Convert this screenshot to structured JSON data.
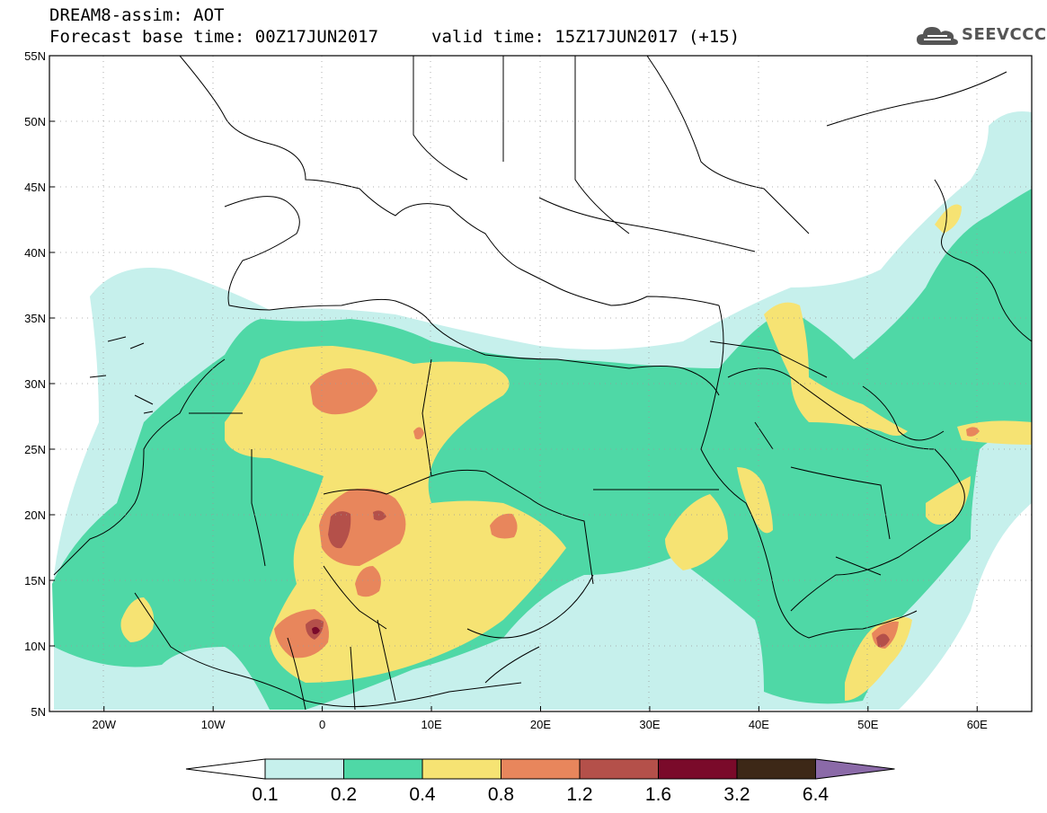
{
  "header": {
    "line1": "DREAM8-assim: AOT",
    "line2": "Forecast base time: 00Z17JUN2017",
    "valid": "valid time: 15Z17JUN2017 (+15)"
  },
  "logo": {
    "text": "SEEVCCC",
    "icon": "cloud-icon"
  },
  "axes": {
    "lon_range": [
      -25,
      65
    ],
    "lat_range": [
      5,
      55
    ],
    "lon_ticks": [
      "20W",
      "10W",
      "0",
      "10E",
      "20E",
      "30E",
      "40E",
      "50E",
      "60E"
    ],
    "lon_values": [
      -20,
      -10,
      0,
      10,
      20,
      30,
      40,
      50,
      60
    ],
    "lat_ticks": [
      "55N",
      "50N",
      "45N",
      "40N",
      "35N",
      "30N",
      "25N",
      "20N",
      "15N",
      "10N",
      "5N"
    ],
    "lat_values": [
      55,
      50,
      45,
      40,
      35,
      30,
      25,
      20,
      15,
      10,
      5
    ]
  },
  "colorbar": {
    "labels": [
      "0.1",
      "0.2",
      "0.4",
      "0.8",
      "1.2",
      "1.6",
      "3.2",
      "6.4"
    ],
    "colors": [
      "#c6f0ec",
      "#4fd8a6",
      "#f6e373",
      "#e8865c",
      "#b4504a",
      "#7a0a2a",
      "#3d2817",
      "#8b6aa8"
    ]
  }
}
